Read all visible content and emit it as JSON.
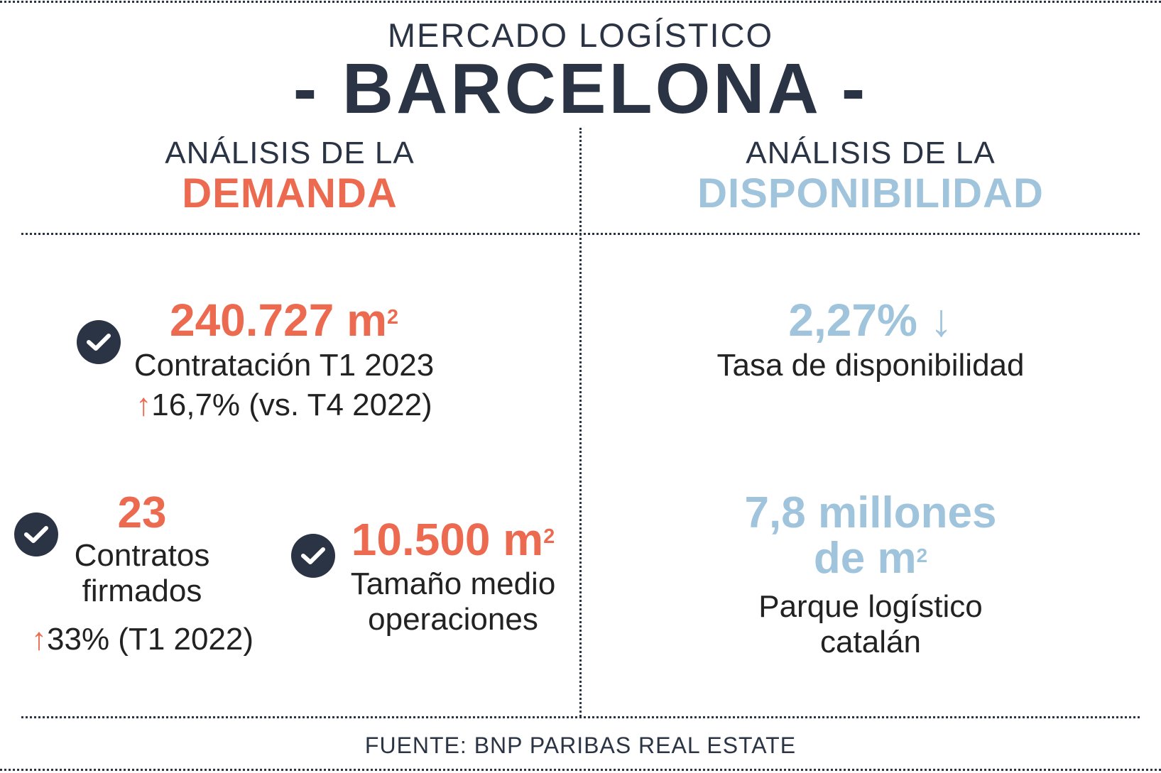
{
  "header": {
    "subtitle": "MERCADO LOGÍSTICO",
    "title": "- BARCELONA -"
  },
  "demand": {
    "pre": "ANÁLISIS DE LA",
    "word": "DEMANDA",
    "stat1": {
      "value": "240.727 m",
      "unit_sup": "2",
      "label": "Contratación T1 2023",
      "change_arrow": "↑",
      "change": "16,7% (vs. T4 2022)"
    },
    "stat2": {
      "value": "23",
      "label_line1": "Contratos",
      "label_line2": "firmados",
      "change_arrow": "↑",
      "change": "33% (T1 2022)"
    },
    "stat3": {
      "value": "10.500 m",
      "unit_sup": "2",
      "label_line1": "Tamaño medio",
      "label_line2": "operaciones"
    }
  },
  "availability": {
    "pre": "ANÁLISIS DE LA",
    "word": "DISPONIBILIDAD",
    "stat1": {
      "value": "2,27%",
      "arrow": "↓",
      "label": "Tasa de disponibilidad"
    },
    "stat2": {
      "value_line1": "7,8 millones",
      "value_line2": "de m",
      "unit_sup": "2",
      "label_line1": "Parque logístico",
      "label_line2": "catalán"
    }
  },
  "footer": {
    "source": "FUENTE: BNP PARIBAS REAL ESTATE"
  },
  "colors": {
    "navy": "#2b3444",
    "orange": "#ec6a4f",
    "blue": "#9fc4dc"
  },
  "icons": [
    "check-circle-icon",
    "arrow-up-icon",
    "arrow-down-icon"
  ]
}
